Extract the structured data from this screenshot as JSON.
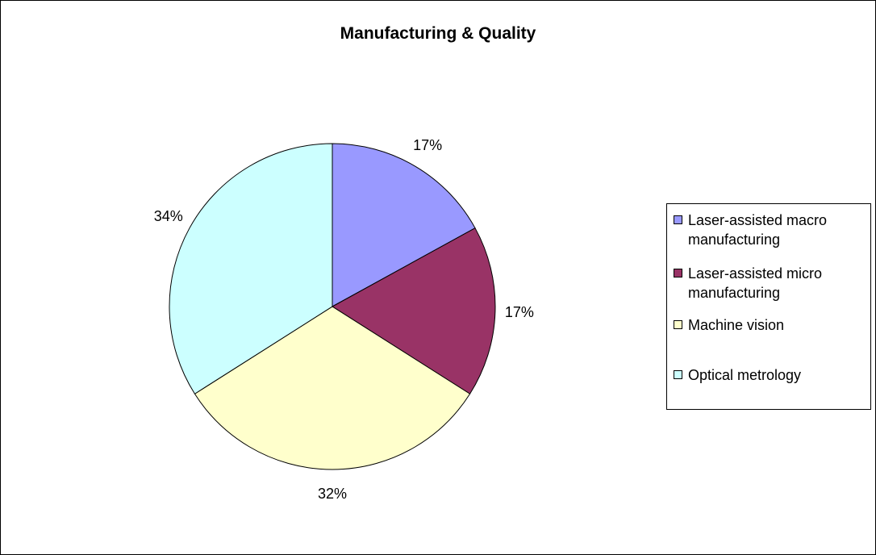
{
  "chart_data": {
    "type": "pie",
    "title": "Manufacturing & Quality",
    "categories": [
      "Laser-assisted macro manufacturing",
      "Laser-assisted micro manufacturing",
      "Machine vision",
      "Optical metrology"
    ],
    "values": [
      17,
      17,
      32,
      34
    ],
    "data_labels": [
      "17%",
      "17%",
      "32%",
      "34%"
    ],
    "colors": [
      "#9999ff",
      "#993366",
      "#ffffcc",
      "#ccffff"
    ],
    "legend": {
      "placement": "right",
      "items": [
        {
          "line1": "Laser-assisted macro",
          "line2": "manufacturing"
        },
        {
          "line1": "Laser-assisted micro",
          "line2": "manufacturing"
        },
        {
          "line1": "Machine vision",
          "line2": ""
        },
        {
          "line1": "Optical metrology",
          "line2": ""
        }
      ]
    }
  }
}
